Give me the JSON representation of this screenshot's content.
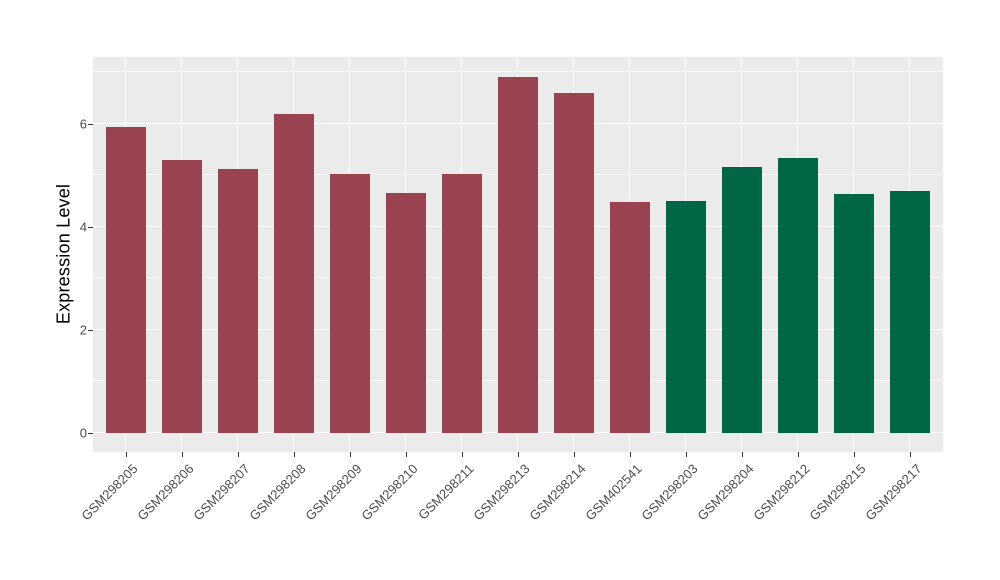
{
  "chart_data": {
    "type": "bar",
    "title": "",
    "ylabel": "Expression Level",
    "xlabel": "",
    "categories": [
      "GSM298205",
      "GSM298206",
      "GSM298207",
      "GSM298208",
      "GSM298209",
      "GSM298210",
      "GSM298211",
      "GSM298213",
      "GSM298214",
      "GSM402541",
      "GSM298203",
      "GSM298204",
      "GSM298212",
      "GSM298215",
      "GSM298217"
    ],
    "values": [
      5.93,
      5.3,
      5.11,
      6.18,
      5.03,
      4.66,
      5.03,
      6.9,
      6.6,
      4.48,
      4.5,
      5.15,
      5.33,
      4.63,
      4.69
    ],
    "groups": [
      "A",
      "A",
      "A",
      "A",
      "A",
      "A",
      "A",
      "A",
      "A",
      "A",
      "B",
      "B",
      "B",
      "B",
      "B"
    ],
    "group_colors": {
      "A": "#9A4350",
      "B": "#006646"
    },
    "yticks": [
      0,
      2,
      4,
      6
    ],
    "yticks_minor": [
      1,
      3,
      5,
      7
    ],
    "ylim": [
      -0.37,
      7.29
    ],
    "grid": true,
    "legend": "none",
    "panel_bg": "#EBEBEB",
    "grid_color": "#FFFFFF"
  }
}
